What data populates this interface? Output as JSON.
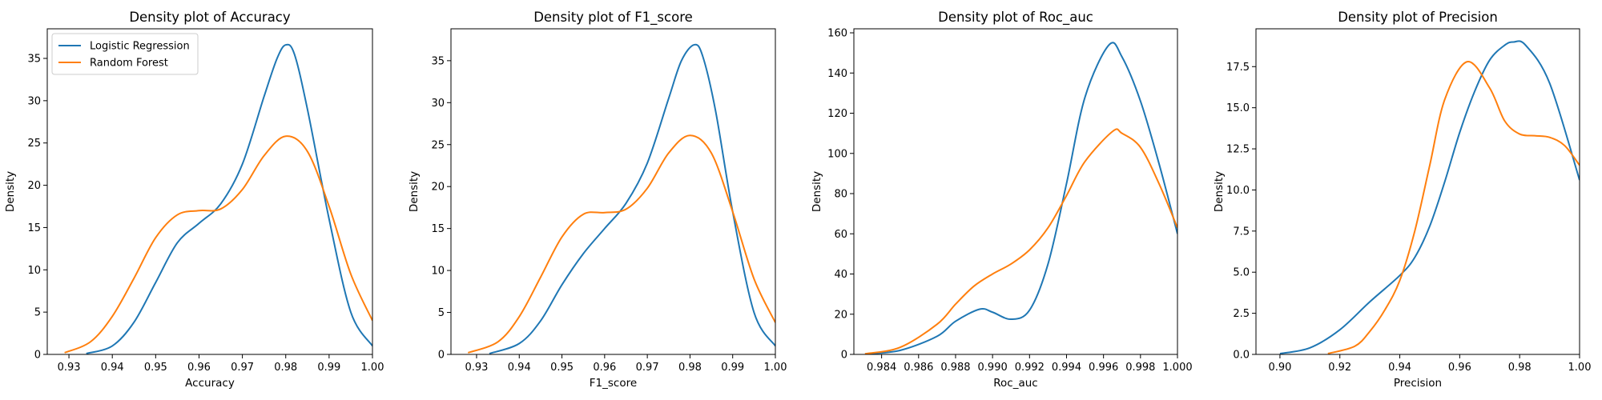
{
  "chart_data": [
    {
      "type": "line",
      "title": "Density plot of Accuracy",
      "xlabel": "Accuracy",
      "ylabel": "Density",
      "xlim": [
        0.925,
        1.0
      ],
      "ylim": [
        0,
        38.5
      ],
      "xticks": [
        0.93,
        0.94,
        0.95,
        0.96,
        0.97,
        0.98,
        0.99,
        1.0
      ],
      "xtick_labels": [
        "0.93",
        "0.94",
        "0.95",
        "0.96",
        "0.97",
        "0.98",
        "0.99",
        "1.00"
      ],
      "yticks": [
        0,
        5,
        10,
        15,
        20,
        25,
        30,
        35
      ],
      "ytick_labels": [
        "0",
        "5",
        "10",
        "15",
        "20",
        "25",
        "30",
        "35"
      ],
      "grid": false,
      "legend": "top-left",
      "series": [
        {
          "name": "Logistic Regression",
          "color": "#1f77b4",
          "x": [
            0.934,
            0.94,
            0.945,
            0.95,
            0.955,
            0.96,
            0.965,
            0.97,
            0.975,
            0.978,
            0.98,
            0.982,
            0.985,
            0.99,
            0.995,
            1.0
          ],
          "y": [
            0.1,
            1.0,
            3.8,
            8.5,
            13.2,
            15.5,
            17.8,
            22.5,
            30.5,
            35.0,
            36.6,
            35.5,
            29.0,
            16.0,
            5.0,
            1.0
          ]
        },
        {
          "name": "Random Forest",
          "color": "#ff7f0e",
          "x": [
            0.929,
            0.935,
            0.94,
            0.945,
            0.95,
            0.955,
            0.96,
            0.965,
            0.97,
            0.975,
            0.98,
            0.985,
            0.99,
            0.995,
            1.0
          ],
          "y": [
            0.2,
            1.5,
            4.5,
            9.0,
            13.8,
            16.5,
            17.0,
            17.2,
            19.5,
            23.5,
            25.8,
            24.0,
            17.5,
            9.5,
            4.0
          ]
        }
      ]
    },
    {
      "type": "line",
      "title": "Density plot of F1_score",
      "xlabel": "F1_score",
      "ylabel": "Density",
      "xlim": [
        0.924,
        1.0
      ],
      "ylim": [
        0,
        38.8
      ],
      "xticks": [
        0.93,
        0.94,
        0.95,
        0.96,
        0.97,
        0.98,
        0.99,
        1.0
      ],
      "xtick_labels": [
        "0.93",
        "0.94",
        "0.95",
        "0.96",
        "0.97",
        "0.98",
        "0.99",
        "1.00"
      ],
      "yticks": [
        0,
        5,
        10,
        15,
        20,
        25,
        30,
        35
      ],
      "ytick_labels": [
        "0",
        "5",
        "10",
        "15",
        "20",
        "25",
        "30",
        "35"
      ],
      "grid": false,
      "series": [
        {
          "name": "Logistic Regression",
          "color": "#1f77b4",
          "x": [
            0.933,
            0.94,
            0.945,
            0.95,
            0.955,
            0.96,
            0.965,
            0.97,
            0.975,
            0.978,
            0.981,
            0.983,
            0.986,
            0.99,
            0.995,
            1.0
          ],
          "y": [
            0.1,
            1.3,
            4.0,
            8.3,
            12.0,
            15.0,
            18.0,
            22.8,
            30.5,
            35.0,
            36.9,
            35.5,
            29.0,
            17.0,
            5.0,
            1.0
          ]
        },
        {
          "name": "Random Forest",
          "color": "#ff7f0e",
          "x": [
            0.928,
            0.935,
            0.94,
            0.945,
            0.95,
            0.955,
            0.96,
            0.965,
            0.97,
            0.975,
            0.98,
            0.985,
            0.99,
            0.995,
            1.0
          ],
          "y": [
            0.2,
            1.5,
            4.5,
            9.2,
            14.0,
            16.7,
            16.9,
            17.3,
            19.8,
            24.0,
            26.1,
            24.0,
            17.0,
            9.0,
            3.8
          ]
        }
      ]
    },
    {
      "type": "line",
      "title": "Density plot of Roc_auc",
      "xlabel": "Roc_auc",
      "ylabel": "Density",
      "xlim": [
        0.9825,
        1.0
      ],
      "ylim": [
        0,
        162
      ],
      "xticks": [
        0.984,
        0.986,
        0.988,
        0.99,
        0.992,
        0.994,
        0.996,
        0.998,
        1.0
      ],
      "xtick_labels": [
        "0.984",
        "0.986",
        "0.988",
        "0.990",
        "0.992",
        "0.994",
        "0.996",
        "0.998",
        "1.000"
      ],
      "yticks": [
        0,
        20,
        40,
        60,
        80,
        100,
        120,
        140,
        160
      ],
      "ytick_labels": [
        "0",
        "20",
        "40",
        "60",
        "80",
        "100",
        "120",
        "140",
        "160"
      ],
      "grid": false,
      "series": [
        {
          "name": "Logistic Regression",
          "color": "#1f77b4",
          "x": [
            0.9832,
            0.985,
            0.987,
            0.988,
            0.9893,
            0.99,
            0.991,
            0.992,
            0.993,
            0.994,
            0.995,
            0.9963,
            0.997,
            0.998,
            0.999,
            1.0
          ],
          "y": [
            0.3,
            2.0,
            9.0,
            16.5,
            22.5,
            21.0,
            17.5,
            22.0,
            45.0,
            85.0,
            128.0,
            154.0,
            148.0,
            126.0,
            95.0,
            60.0
          ]
        },
        {
          "name": "Random Forest",
          "color": "#ff7f0e",
          "x": [
            0.9831,
            0.985,
            0.987,
            0.988,
            0.989,
            0.99,
            0.991,
            0.992,
            0.993,
            0.994,
            0.995,
            0.9965,
            0.997,
            0.998,
            0.999,
            1.0
          ],
          "y": [
            0.3,
            3.5,
            15.0,
            25.0,
            34.0,
            40.0,
            45.0,
            52.0,
            63.0,
            79.0,
            96.0,
            111.0,
            110.0,
            103.0,
            85.0,
            63.0
          ]
        }
      ]
    },
    {
      "type": "line",
      "title": "Density plot of Precision",
      "xlabel": "Precision",
      "ylabel": "Density",
      "xlim": [
        0.892,
        1.0
      ],
      "ylim": [
        0,
        19.8
      ],
      "xticks": [
        0.9,
        0.92,
        0.94,
        0.96,
        0.98,
        1.0
      ],
      "xtick_labels": [
        "0.90",
        "0.92",
        "0.94",
        "0.96",
        "0.98",
        "1.00"
      ],
      "yticks": [
        0,
        2.5,
        5.0,
        7.5,
        10.0,
        12.5,
        15.0,
        17.5
      ],
      "ytick_labels": [
        "0.0",
        "2.5",
        "5.0",
        "7.5",
        "10.0",
        "12.5",
        "15.0",
        "17.5"
      ],
      "grid": false,
      "series": [
        {
          "name": "Logistic Regression",
          "color": "#1f77b4",
          "x": [
            0.9,
            0.91,
            0.92,
            0.93,
            0.94,
            0.945,
            0.95,
            0.955,
            0.96,
            0.965,
            0.97,
            0.975,
            0.978,
            0.982,
            0.99,
            1.0
          ],
          "y": [
            0.05,
            0.4,
            1.5,
            3.2,
            4.8,
            5.9,
            7.8,
            10.5,
            13.5,
            16.0,
            17.9,
            18.8,
            19.0,
            18.8,
            16.5,
            10.6
          ]
        },
        {
          "name": "Random Forest",
          "color": "#ff7f0e",
          "x": [
            0.916,
            0.925,
            0.93,
            0.935,
            0.94,
            0.945,
            0.95,
            0.955,
            0.9625,
            0.97,
            0.975,
            0.98,
            0.985,
            0.99,
            0.995,
            1.0
          ],
          "y": [
            0.05,
            0.5,
            1.4,
            2.7,
            4.5,
            7.5,
            11.5,
            15.5,
            17.8,
            16.2,
            14.2,
            13.4,
            13.3,
            13.2,
            12.7,
            11.5
          ]
        }
      ]
    }
  ]
}
